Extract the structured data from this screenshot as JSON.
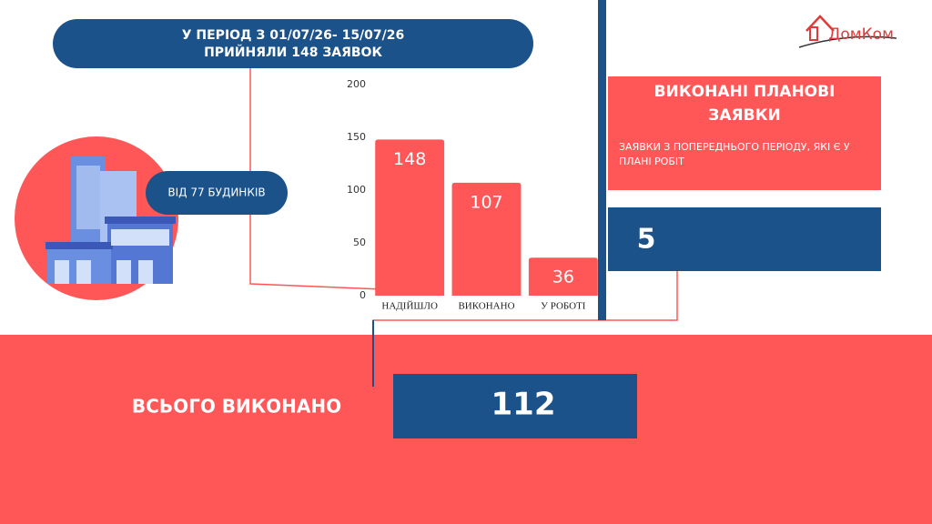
{
  "header": {
    "period": "У ПЕРІОД З 01/07/26- 15/07/26",
    "received": "ПРИЙНЯЛИ 148 ЗАЯВОК"
  },
  "logo": "ДомКом",
  "buildings": "ВІД 77 БУДИНКІВ",
  "chart_data": {
    "type": "bar",
    "categories": [
      "НАДІЙШЛО",
      "ВИКОНАНО",
      "У РОБОТІ"
    ],
    "values": [
      148,
      107,
      36
    ],
    "color": "#ff5757",
    "ylim": [
      0,
      200
    ],
    "yticks": [
      0,
      50,
      100,
      150,
      200
    ],
    "grid": false
  },
  "planned": {
    "title": "ВИКОНАНІ ПЛАНОВІ ЗАЯВКИ",
    "note": "ЗАЯВКИ З ПОПЕРЕДНЬОГО ПЕРІОДУ, ЯКІ Є У ПЛАНІ РОБІТ",
    "count": 5
  },
  "total": {
    "label": "ВСЬОГО ВИКОНАНО",
    "value": 112
  }
}
